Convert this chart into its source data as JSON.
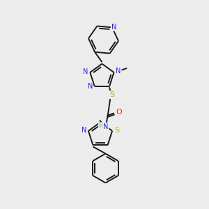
{
  "bg_color": "#ececec",
  "bond_color": "#1a1a1a",
  "N_color": "#2222ee",
  "S_color": "#ccaa00",
  "O_color": "#ee2222",
  "H_color": "#4a9999",
  "lw": 1.4,
  "fs": 7.0,
  "dbl_sep": 0.07,
  "xlim": [
    0,
    10
  ],
  "ylim": [
    0,
    10
  ]
}
